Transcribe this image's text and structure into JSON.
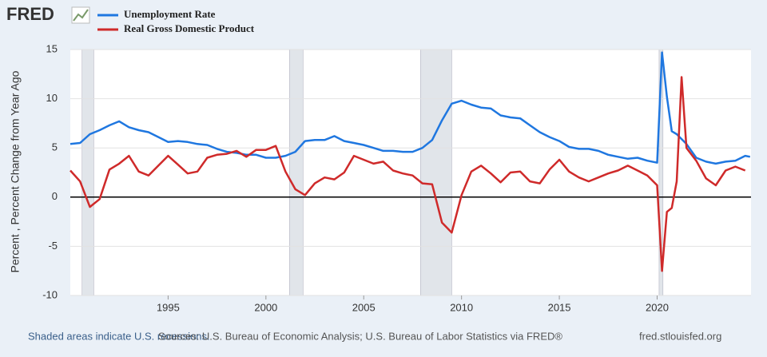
{
  "chart_data": {
    "type": "line",
    "logo": "FRED",
    "y_label": "Percent , Percent Change from Year Ago",
    "x": [
      1990.0,
      1990.5,
      1991.0,
      1991.5,
      1992.0,
      1992.5,
      1993.0,
      1993.5,
      1994.0,
      1994.5,
      1995.0,
      1995.5,
      1996.0,
      1996.5,
      1997.0,
      1997.5,
      1998.0,
      1998.5,
      1999.0,
      1999.5,
      2000.0,
      2000.5,
      2001.0,
      2001.5,
      2002.0,
      2002.5,
      2003.0,
      2003.5,
      2004.0,
      2004.5,
      2005.0,
      2005.5,
      2006.0,
      2006.5,
      2007.0,
      2007.5,
      2008.0,
      2008.5,
      2009.0,
      2009.5,
      2010.0,
      2010.5,
      2011.0,
      2011.5,
      2012.0,
      2012.5,
      2013.0,
      2013.5,
      2014.0,
      2014.5,
      2015.0,
      2015.5,
      2016.0,
      2016.5,
      2017.0,
      2017.5,
      2018.0,
      2018.5,
      2019.0,
      2019.5,
      2020.0,
      2020.25,
      2020.5,
      2020.75,
      2021.0,
      2021.25,
      2021.5,
      2022.0,
      2022.5,
      2023.0,
      2023.5,
      2024.0,
      2024.5,
      2024.75
    ],
    "series": [
      {
        "name": "Unemployment Rate",
        "color": "#1f77e0",
        "values": [
          5.4,
          5.5,
          6.4,
          6.8,
          7.3,
          7.7,
          7.1,
          6.8,
          6.6,
          6.1,
          5.6,
          5.7,
          5.6,
          5.4,
          5.3,
          4.9,
          4.6,
          4.5,
          4.3,
          4.3,
          4.0,
          4.0,
          4.2,
          4.6,
          5.7,
          5.8,
          5.8,
          6.2,
          5.7,
          5.5,
          5.3,
          5.0,
          4.7,
          4.7,
          4.6,
          4.6,
          5.0,
          5.8,
          7.8,
          9.5,
          9.8,
          9.4,
          9.1,
          9.0,
          8.3,
          8.1,
          8.0,
          7.3,
          6.6,
          6.1,
          5.7,
          5.1,
          4.9,
          4.9,
          4.7,
          4.3,
          4.1,
          3.9,
          4.0,
          3.7,
          3.5,
          14.7,
          10.2,
          6.7,
          6.4,
          5.9,
          5.4,
          4.0,
          3.6,
          3.4,
          3.6,
          3.7,
          4.2,
          4.1
        ]
      },
      {
        "name": "Real Gross Domestic Product",
        "color": "#cf2a2a",
        "values": [
          2.7,
          1.6,
          -1.0,
          -0.2,
          2.8,
          3.4,
          4.2,
          2.6,
          2.2,
          3.2,
          4.2,
          3.3,
          2.4,
          2.6,
          4.0,
          4.3,
          4.4,
          4.7,
          4.1,
          4.8,
          4.8,
          5.2,
          2.6,
          0.8,
          0.2,
          1.4,
          2.0,
          1.8,
          2.5,
          4.2,
          3.8,
          3.4,
          3.6,
          2.7,
          2.4,
          2.2,
          1.4,
          1.3,
          -2.6,
          -3.6,
          0.2,
          2.6,
          3.2,
          2.4,
          1.5,
          2.5,
          2.6,
          1.6,
          1.4,
          2.8,
          3.8,
          2.6,
          2.0,
          1.6,
          2.0,
          2.4,
          2.7,
          3.2,
          2.7,
          2.2,
          1.2,
          -7.5,
          -1.5,
          -1.1,
          1.6,
          12.2,
          5.0,
          3.7,
          1.9,
          1.2,
          2.7,
          3.1,
          2.7,
          null
        ]
      }
    ],
    "recessions": [
      [
        1990.6,
        1991.2
      ],
      [
        2001.2,
        2001.9
      ],
      [
        2007.9,
        2009.5
      ],
      [
        2020.1,
        2020.3
      ]
    ],
    "recession_color": "#e1e5ea",
    "xlim": [
      1990,
      2024.8
    ],
    "xticks": [
      1995,
      2000,
      2005,
      2010,
      2015,
      2020
    ],
    "ylim": [
      -10,
      15
    ],
    "yticks": [
      -10,
      -5,
      0,
      5,
      10,
      15
    ],
    "grid": true,
    "footer": {
      "note": "Shaded areas indicate U.S. recessions.",
      "sources": "Sources: U.S. Bureau of Economic Analysis; U.S. Bureau of Labor Statistics via FRED®",
      "site": "fred.stlouisfed.org"
    }
  }
}
